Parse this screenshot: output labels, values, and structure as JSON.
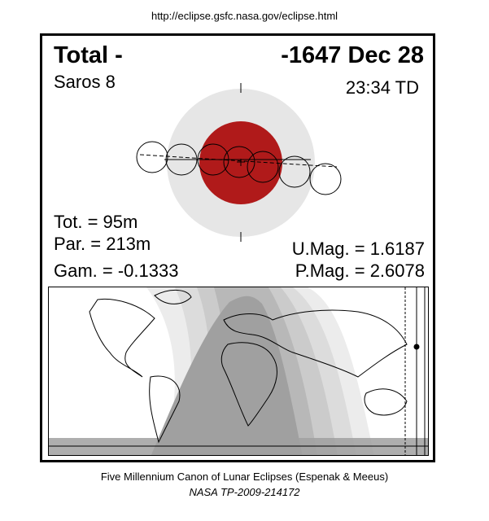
{
  "header": {
    "url": "http://eclipse.gsfc.nasa.gov/eclipse.html"
  },
  "eclipse": {
    "type": "Total  -",
    "date": "-1647 Dec 28",
    "saros": "Saros   8",
    "time": "23:34 TD",
    "tot_duration": "Tot. =  95m",
    "par_duration": "Par. = 213m",
    "gamma": "Gam. = -0.1333",
    "umbral_mag": "U.Mag. = 1.6187",
    "penumbral_mag": "P.Mag. = 2.6078"
  },
  "colors": {
    "penumbra": "#e6e6e6",
    "umbra": "#b01a1a",
    "map_total": "#a0a0a0",
    "map_band_1": "#b8b8b8",
    "map_band_2": "#cbcbcb",
    "map_band_3": "#dcdcdc",
    "map_band_4": "#ececec"
  },
  "footer": {
    "credit": "Five Millennium Canon of Lunar Eclipses (Espenak & Meeus)",
    "publication": "NASA TP-2009-214172"
  }
}
